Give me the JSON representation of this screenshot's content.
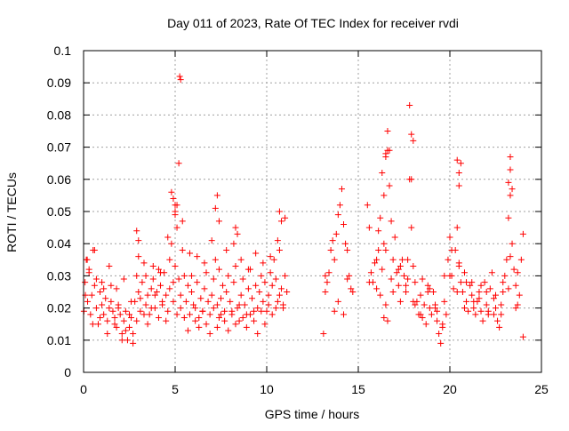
{
  "chart_data": {
    "type": "scatter",
    "title": "Day 011 of 2023, Rate Of TEC Index for receiver rvdi",
    "xlabel": "GPS time / hours",
    "ylabel": "ROTI / TECUs",
    "xlim": [
      0,
      25
    ],
    "ylim": [
      0,
      0.1
    ],
    "xticks": [
      "0",
      "5",
      "10",
      "15",
      "20",
      "25"
    ],
    "yticks": [
      "0",
      "0.01",
      "0.02",
      "0.03",
      "0.04",
      "0.05",
      "0.06",
      "0.07",
      "0.08",
      "0.09",
      "0.1"
    ],
    "grid": true,
    "marker": "+",
    "marker_color": "#ff0000",
    "series": [
      {
        "x": [
          0.02,
          0.08,
          0.15,
          0.22,
          0.3,
          0.38,
          0.45,
          0.52,
          0.6,
          0.7,
          0.8,
          0.9,
          1.0,
          1.1,
          1.2,
          1.3,
          1.4,
          1.5,
          1.6,
          1.7,
          1.8,
          1.9,
          2.0,
          2.1,
          2.2,
          2.3,
          2.4,
          2.5,
          2.6,
          2.7,
          2.8,
          2.9,
          3.0,
          3.1,
          3.2,
          3.3,
          3.4,
          3.5,
          3.6,
          3.7,
          3.8,
          3.9,
          4.0,
          4.1,
          4.2,
          4.3,
          4.4,
          4.5,
          4.6,
          4.7,
          4.8,
          4.9,
          5.0,
          5.1,
          5.2,
          5.3,
          5.4,
          5.5,
          5.6,
          5.7,
          5.8,
          5.9,
          6.0,
          6.1,
          6.2,
          6.3,
          6.4,
          6.5,
          6.6,
          6.7,
          6.8,
          6.9,
          7.0,
          7.1,
          7.2,
          7.3,
          7.4,
          7.5,
          7.6,
          7.7,
          7.8,
          7.9,
          8.0,
          8.1,
          8.2,
          8.3,
          8.4,
          8.5,
          8.6,
          8.7,
          8.8,
          8.9,
          9.0,
          9.1,
          9.2,
          9.3,
          9.4,
          9.5,
          9.6,
          9.7,
          9.8,
          9.9,
          10.0,
          10.1,
          10.2,
          10.3,
          10.4,
          10.5,
          10.6,
          10.7,
          10.8,
          10.9,
          11.0,
          11.1,
          0.1,
          0.3,
          0.5,
          0.7,
          0.9,
          1.1,
          1.3,
          1.5,
          1.7,
          1.9,
          2.1,
          2.3,
          2.5,
          2.7,
          2.9,
          3.1,
          3.3,
          3.5,
          3.7,
          3.9,
          4.1,
          4.3,
          4.5,
          4.7,
          4.9,
          5.1,
          5.3,
          5.5,
          5.7,
          5.9,
          6.1,
          6.3,
          6.5,
          6.7,
          6.9,
          7.1,
          7.3,
          7.5,
          7.7,
          7.9,
          8.1,
          8.3,
          8.5,
          8.7,
          8.9,
          9.1,
          9.3,
          9.5,
          9.7,
          9.9,
          10.1,
          10.3,
          10.5,
          10.7,
          10.9,
          0.2,
          0.6,
          1.0,
          1.4,
          1.8,
          2.2,
          2.6,
          3.0,
          3.4,
          3.8,
          4.2,
          4.6,
          5.0,
          5.4,
          5.8,
          6.2,
          6.6,
          7.0,
          7.4,
          7.8,
          8.2,
          8.6,
          9.0,
          9.4,
          9.8,
          10.2,
          10.6,
          11.0,
          4.8,
          4.9,
          5.0,
          5.1,
          5.2,
          5.25,
          5.3,
          5.0,
          7.2,
          7.3,
          7.4,
          8.3,
          8.4,
          10.7,
          10.8,
          2.9,
          3.0,
          13.1,
          13.2,
          13.3,
          13.4,
          13.5,
          13.6,
          13.7,
          13.8,
          13.9,
          14.0,
          14.1,
          14.2,
          14.3,
          14.4,
          14.5,
          14.6,
          14.7,
          13.7,
          13.9,
          14.2,
          14.4,
          13.2,
          15.5,
          15.6,
          15.7,
          15.8,
          15.9,
          16.0,
          16.1,
          16.2,
          16.3,
          16.4,
          16.5,
          16.6,
          16.7,
          16.8,
          16.9,
          17.0,
          17.1,
          17.2,
          17.3,
          17.4,
          17.5,
          17.6,
          17.7,
          17.8,
          17.9,
          18.0,
          18.1,
          18.2,
          18.3,
          18.4,
          18.5,
          18.6,
          18.7,
          18.8,
          18.9,
          19.0,
          19.1,
          19.2,
          19.3,
          19.4,
          19.5,
          19.6,
          19.7,
          19.8,
          19.9,
          20.0,
          20.1,
          20.2,
          20.3,
          20.4,
          20.5,
          20.6,
          20.7,
          20.8,
          20.9,
          21.0,
          21.1,
          21.2,
          21.3,
          21.4,
          21.5,
          21.6,
          21.7,
          21.8,
          21.9,
          22.0,
          22.1,
          22.2,
          22.3,
          22.4,
          22.5,
          22.6,
          22.7,
          22.8,
          22.9,
          23.0,
          23.1,
          23.2,
          23.3,
          23.4,
          23.5,
          23.6,
          23.7,
          23.8,
          23.9,
          24.0,
          16.2,
          16.3,
          16.4,
          16.5,
          16.6,
          16.7,
          17.8,
          17.9,
          18.0,
          20.4,
          20.5,
          20.6,
          23.2,
          23.3,
          23.4,
          16.5,
          16.6,
          23.3,
          20.5,
          17.9,
          15.6,
          16.0,
          16.4,
          16.8,
          17.2,
          17.6,
          18.0,
          18.4,
          18.8,
          19.2,
          19.6,
          20.0,
          20.4,
          20.8,
          21.2,
          21.6,
          22.0,
          22.4,
          22.8,
          23.2,
          23.6,
          24.0,
          16.1,
          16.5,
          16.9,
          17.3,
          17.7,
          18.1,
          18.5,
          18.9,
          19.3,
          19.7,
          20.1,
          20.5,
          20.9,
          21.3,
          21.7,
          22.1,
          22.5,
          22.9,
          23.3,
          23.7
        ],
        "y": [
          0.019,
          0.028,
          0.035,
          0.022,
          0.031,
          0.018,
          0.024,
          0.038,
          0.027,
          0.02,
          0.015,
          0.025,
          0.021,
          0.018,
          0.023,
          0.016,
          0.02,
          0.027,
          0.019,
          0.017,
          0.014,
          0.021,
          0.018,
          0.012,
          0.016,
          0.019,
          0.01,
          0.014,
          0.017,
          0.012,
          0.022,
          0.03,
          0.025,
          0.019,
          0.028,
          0.034,
          0.021,
          0.024,
          0.018,
          0.026,
          0.029,
          0.02,
          0.025,
          0.032,
          0.027,
          0.022,
          0.031,
          0.024,
          0.019,
          0.035,
          0.04,
          0.028,
          0.033,
          0.045,
          0.029,
          0.024,
          0.038,
          0.03,
          0.022,
          0.027,
          0.018,
          0.025,
          0.021,
          0.02,
          0.028,
          0.017,
          0.023,
          0.019,
          0.026,
          0.031,
          0.022,
          0.018,
          0.024,
          0.029,
          0.035,
          0.021,
          0.017,
          0.023,
          0.027,
          0.019,
          0.025,
          0.03,
          0.022,
          0.018,
          0.028,
          0.033,
          0.02,
          0.016,
          0.024,
          0.029,
          0.021,
          0.018,
          0.026,
          0.032,
          0.023,
          0.019,
          0.027,
          0.02,
          0.025,
          0.03,
          0.022,
          0.028,
          0.019,
          0.024,
          0.031,
          0.027,
          0.035,
          0.029,
          0.022,
          0.038,
          0.026,
          0.02,
          0.03,
          0.025,
          0.024,
          0.032,
          0.015,
          0.029,
          0.017,
          0.026,
          0.012,
          0.022,
          0.015,
          0.02,
          0.01,
          0.013,
          0.018,
          0.009,
          0.016,
          0.023,
          0.018,
          0.015,
          0.02,
          0.024,
          0.017,
          0.021,
          0.016,
          0.026,
          0.022,
          0.018,
          0.02,
          0.017,
          0.013,
          0.03,
          0.016,
          0.014,
          0.019,
          0.015,
          0.012,
          0.02,
          0.014,
          0.018,
          0.016,
          0.013,
          0.019,
          0.015,
          0.021,
          0.017,
          0.014,
          0.018,
          0.016,
          0.012,
          0.019,
          0.015,
          0.021,
          0.018,
          0.02,
          0.024,
          0.021,
          0.035,
          0.038,
          0.028,
          0.033,
          0.026,
          0.029,
          0.022,
          0.036,
          0.03,
          0.033,
          0.031,
          0.042,
          0.052,
          0.047,
          0.037,
          0.036,
          0.034,
          0.041,
          0.032,
          0.038,
          0.04,
          0.035,
          0.032,
          0.037,
          0.034,
          0.036,
          0.041,
          0.048,
          0.056,
          0.054,
          0.05,
          0.052,
          0.065,
          0.092,
          0.091,
          0.049,
          0.051,
          0.055,
          0.047,
          0.045,
          0.043,
          0.05,
          0.047,
          0.044,
          0.041,
          0.012,
          0.025,
          0.028,
          0.031,
          0.038,
          0.041,
          0.035,
          0.043,
          0.049,
          0.052,
          0.057,
          0.046,
          0.04,
          0.038,
          0.03,
          0.026,
          0.025,
          0.019,
          0.022,
          0.018,
          0.029,
          0.03,
          0.052,
          0.045,
          0.031,
          0.028,
          0.034,
          0.026,
          0.038,
          0.048,
          0.062,
          0.055,
          0.067,
          0.075,
          0.058,
          0.047,
          0.035,
          0.042,
          0.031,
          0.027,
          0.022,
          0.035,
          0.03,
          0.025,
          0.035,
          0.06,
          0.045,
          0.033,
          0.028,
          0.022,
          0.018,
          0.024,
          0.029,
          0.021,
          0.015,
          0.027,
          0.02,
          0.018,
          0.025,
          0.021,
          0.016,
          0.012,
          0.009,
          0.014,
          0.022,
          0.018,
          0.035,
          0.042,
          0.03,
          0.026,
          0.038,
          0.045,
          0.033,
          0.028,
          0.025,
          0.031,
          0.022,
          0.019,
          0.027,
          0.024,
          0.02,
          0.018,
          0.022,
          0.025,
          0.019,
          0.016,
          0.028,
          0.021,
          0.018,
          0.026,
          0.031,
          0.023,
          0.02,
          0.016,
          0.014,
          0.018,
          0.025,
          0.03,
          0.035,
          0.048,
          0.055,
          0.04,
          0.032,
          0.027,
          0.021,
          0.024,
          0.035,
          0.043,
          0.024,
          0.032,
          0.017,
          0.021,
          0.016,
          0.069,
          0.083,
          0.074,
          0.072,
          0.066,
          0.062,
          0.065,
          0.059,
          0.063,
          0.057,
          0.068,
          0.069,
          0.067,
          0.058,
          0.06,
          0.028,
          0.035,
          0.04,
          0.029,
          0.032,
          0.027,
          0.022,
          0.018,
          0.025,
          0.02,
          0.015,
          0.03,
          0.025,
          0.02,
          0.028,
          0.023,
          0.025,
          0.018,
          0.021,
          0.026,
          0.02,
          0.011,
          0.044,
          0.038,
          0.025,
          0.033,
          0.029,
          0.021,
          0.017,
          0.026,
          0.019,
          0.03,
          0.038,
          0.034,
          0.028,
          0.022,
          0.027,
          0.019,
          0.024,
          0.028,
          0.036,
          0.031
        ]
      }
    ]
  }
}
